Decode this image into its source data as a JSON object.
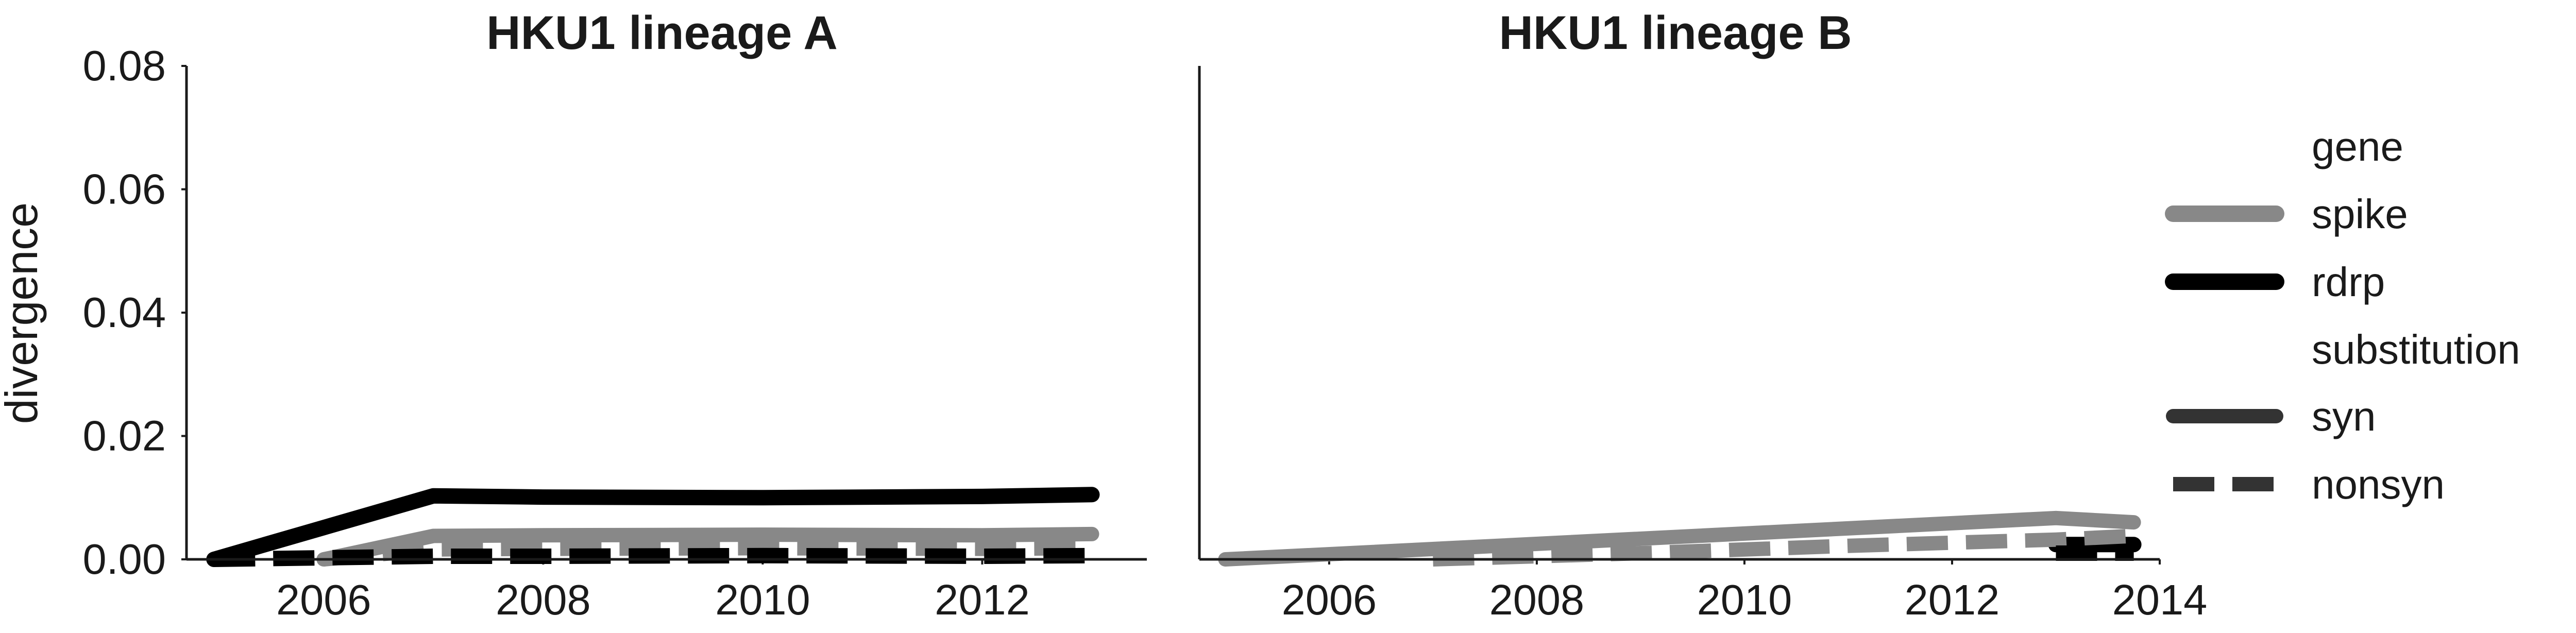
{
  "chart_data": [
    {
      "type": "line",
      "title": "HKU1 lineage A",
      "ylabel": "divergence",
      "xlabel": "",
      "xlim": [
        2004.75,
        2013.5
      ],
      "ylim": [
        0,
        0.08
      ],
      "xticks": [
        2006,
        2008,
        2010,
        2012
      ],
      "yticks": [
        0.0,
        0.02,
        0.04,
        0.06,
        0.08
      ],
      "ytick_labels": [
        "0.00",
        "0.02",
        "0.04",
        "0.06",
        "0.08"
      ],
      "series": [
        {
          "gene": "spike",
          "substitution": "syn",
          "color": "#888888",
          "x": [
            2006,
            2007,
            2008,
            2010,
            2012,
            2013
          ],
          "y": [
            0.0,
            0.0038,
            0.0039,
            0.004,
            0.0039,
            0.0041
          ]
        },
        {
          "gene": "spike",
          "substitution": "nonsyn",
          "color": "#888888",
          "x": [
            2006,
            2007,
            2008,
            2010,
            2012,
            2013
          ],
          "y": [
            0.0,
            0.0016,
            0.0017,
            0.0018,
            0.0017,
            0.0018
          ]
        },
        {
          "gene": "rdrp",
          "substitution": "syn",
          "color": "#000000",
          "x": [
            2005,
            2007,
            2008,
            2010,
            2012,
            2013
          ],
          "y": [
            0.0,
            0.0103,
            0.0101,
            0.01,
            0.0102,
            0.0105
          ]
        },
        {
          "gene": "rdrp",
          "substitution": "nonsyn",
          "color": "#000000",
          "x": [
            2005,
            2007,
            2008,
            2010,
            2012,
            2013
          ],
          "y": [
            0.0,
            0.0005,
            0.0005,
            0.0006,
            0.0005,
            0.0006
          ]
        }
      ]
    },
    {
      "type": "line",
      "title": "HKU1 lineage B",
      "ylabel": "",
      "xlabel": "",
      "xlim": [
        2004.75,
        2014.0
      ],
      "ylim": [
        0,
        0.08
      ],
      "xticks": [
        2006,
        2008,
        2010,
        2012,
        2014
      ],
      "series": [
        {
          "gene": "spike",
          "substitution": "syn",
          "color": "#888888",
          "x": [
            2005,
            2013,
            2013.75
          ],
          "y": [
            0.0,
            0.0067,
            0.006
          ]
        },
        {
          "gene": "spike",
          "substitution": "nonsyn",
          "color": "#888888",
          "x": [
            2007,
            2009,
            2011,
            2013,
            2013.75
          ],
          "y": [
            0.0,
            0.001,
            0.0022,
            0.0032,
            0.0038
          ]
        },
        {
          "gene": "rdrp",
          "substitution": "syn",
          "color": "#000000",
          "x": [
            2013,
            2013.75
          ],
          "y": [
            0.0024,
            0.0024
          ]
        },
        {
          "gene": "rdrp",
          "substitution": "nonsyn",
          "color": "#000000",
          "x": [
            2013,
            2013.75
          ],
          "y": [
            0.001,
            0.001
          ]
        }
      ]
    }
  ],
  "legend": {
    "gene_title": "gene",
    "gene_items": [
      {
        "label": "spike",
        "color": "#888888"
      },
      {
        "label": "rdrp",
        "color": "#000000"
      }
    ],
    "substitution_title": "substitution",
    "substitution_items": [
      {
        "label": "syn",
        "style": "solid",
        "color": "#333333"
      },
      {
        "label": "nonsyn",
        "style": "dashed",
        "color": "#333333"
      }
    ]
  }
}
